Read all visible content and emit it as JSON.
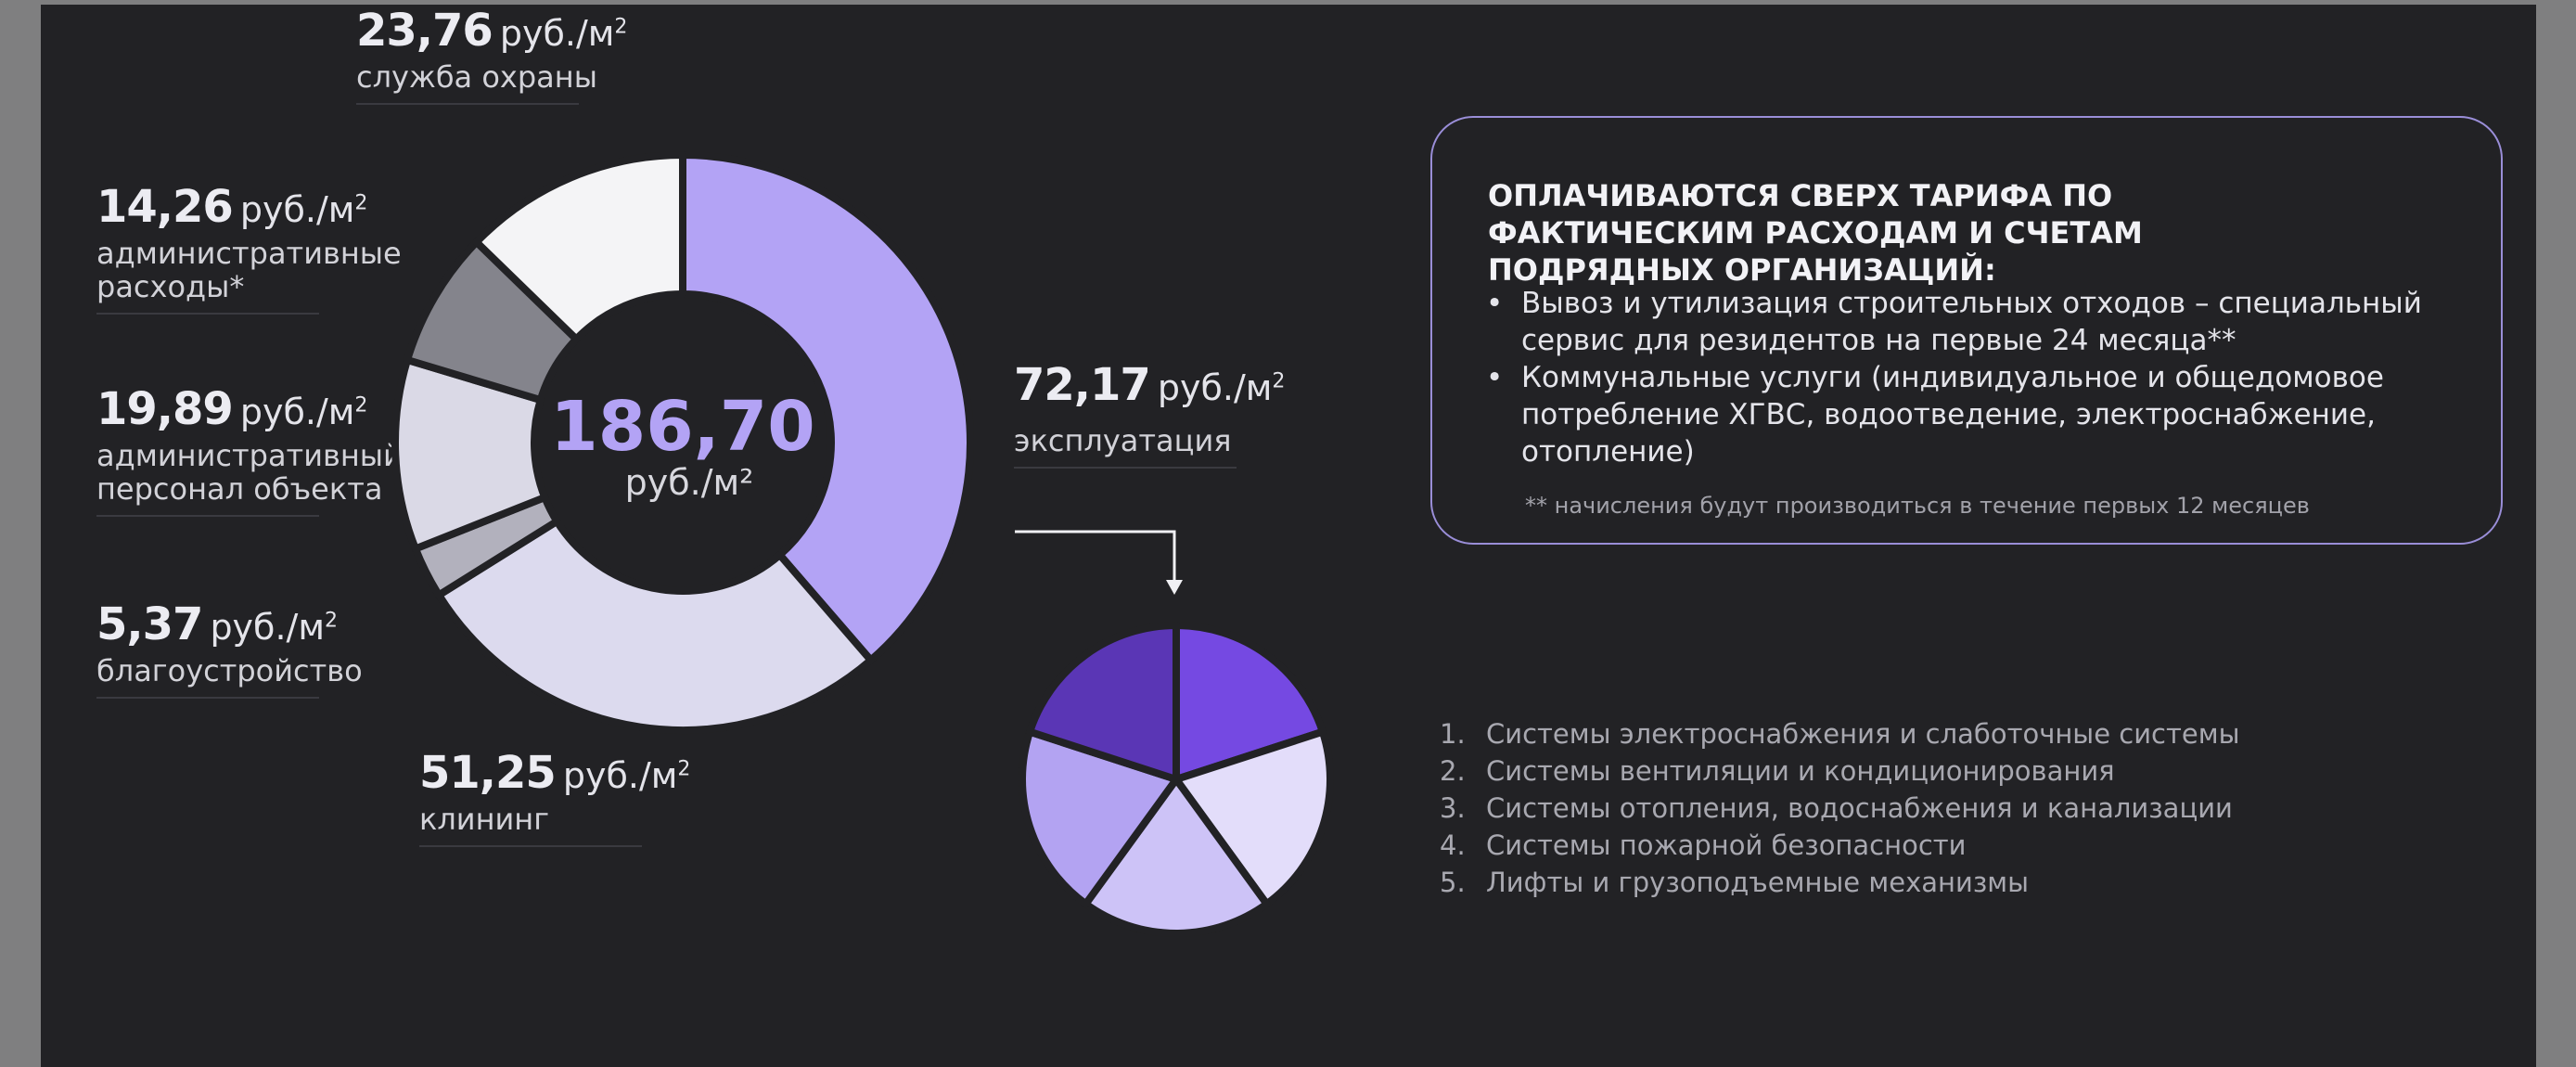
{
  "labels": [
    {
      "key": "security",
      "value": "23,76",
      "unit": "руб./м",
      "unit_sup": "2",
      "desc": "служба охраны"
    },
    {
      "key": "admin_expenses",
      "value": "14,26",
      "unit": "руб./м",
      "unit_sup": "2",
      "desc": "административные расходы*"
    },
    {
      "key": "admin_staff",
      "value": "19,89",
      "unit": "руб./м",
      "unit_sup": "2",
      "desc": "административный персонал объекта"
    },
    {
      "key": "landscaping",
      "value": "5,37",
      "unit": "руб./м",
      "unit_sup": "2",
      "desc": "благоустройство"
    },
    {
      "key": "cleaning",
      "value": "51,25",
      "unit": "руб./м",
      "unit_sup": "2",
      "desc": "клининг"
    },
    {
      "key": "operation",
      "value": "72,17",
      "unit": "руб./м",
      "unit_sup": "2",
      "desc": "эксплуатация"
    }
  ],
  "center": {
    "value": "186,70",
    "unit": "руб./м²"
  },
  "chart_data": [
    {
      "type": "pie",
      "variant": "donut",
      "total": 186.7,
      "slices": [
        {
          "label": "эксплуатация",
          "value": 72.17,
          "color": "#b3a3f5"
        },
        {
          "label": "клининг",
          "value": 51.25,
          "color": "#dcdaee"
        },
        {
          "label": "благоустройство",
          "value": 5.37,
          "color": "#b2b1bd"
        },
        {
          "label": "административный персонал объекта",
          "value": 19.89,
          "color": "#dad9e6"
        },
        {
          "label": "административные расходы*",
          "value": 14.26,
          "color": "#84848c"
        },
        {
          "label": "служба охраны",
          "value": 23.76,
          "color": "#f4f4f6"
        }
      ]
    },
    {
      "type": "pie",
      "slices": [
        {
          "label": "1",
          "value": 1,
          "color": "#7549e2"
        },
        {
          "label": "2",
          "value": 1,
          "color": "#e3ddfa"
        },
        {
          "label": "3",
          "value": 1,
          "color": "#cdc3f7"
        },
        {
          "label": "4",
          "value": 1,
          "color": "#b3a3f2"
        },
        {
          "label": "5",
          "value": 1,
          "color": "#5a36b5"
        }
      ]
    }
  ],
  "info": {
    "title": "ОПЛАЧИВАЮТСЯ СВЕРХ ТАРИФА ПО ФАКТИЧЕСКИМ РАСХОДАМ И СЧЕТАМ ПОДРЯДНЫХ ОРГАНИЗАЦИЙ:",
    "bullets": [
      "Вывоз и утилизация строительных отходов – специальный сервис для резидентов на первые 24 месяца**",
      "Коммунальные услуги (индивидуальное и общедомовое потребление ХГВС, водоотведение, электроснабжение, отопление)"
    ],
    "note": "** начисления будут производиться в течение первых 12 месяцев"
  },
  "systems": [
    {
      "n": "1.",
      "text": "Системы электроснабжения и слаботочные системы"
    },
    {
      "n": "2.",
      "text": "Системы вентиляции и кондиционирования"
    },
    {
      "n": "3.",
      "text": "Системы отопления, водоснабжения и канализации"
    },
    {
      "n": "4.",
      "text": "Системы пожарной безопасности"
    },
    {
      "n": "5.",
      "text": "Лифты и грузоподъемные механизмы"
    }
  ],
  "colors": {
    "background": "#222225",
    "accent": "#b3a3f5",
    "border": "#9a8ed8"
  }
}
